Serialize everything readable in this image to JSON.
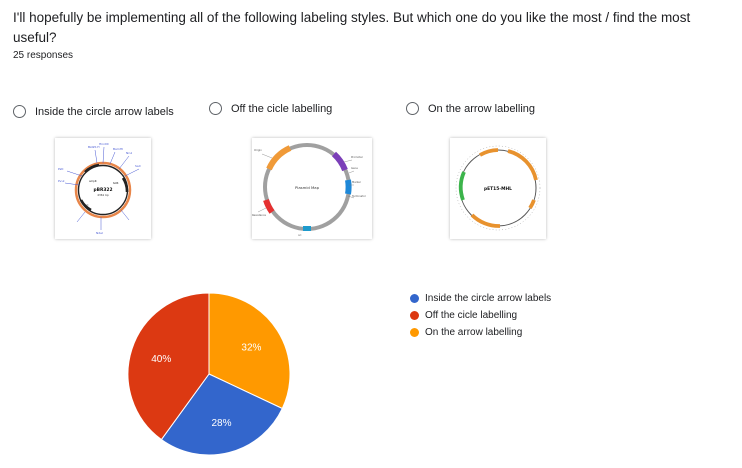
{
  "question": {
    "title": "I'll hopefully be implementing all of the following labeling styles. But which one do you like the most / find the most useful?",
    "responses": "25 responses"
  },
  "options": [
    {
      "label": "Inside the circle arrow labels",
      "icon": "radio-icon"
    },
    {
      "label": "Off the cicle labelling",
      "icon": "radio-icon"
    },
    {
      "label": "On the arrow labelling",
      "icon": "radio-icon"
    }
  ],
  "thumbnails": {
    "pbr322": {
      "name": "pBR322",
      "size": "4361 bp"
    },
    "plasmid": {
      "name": "Plasmid Map"
    },
    "pet15": {
      "name": "pET15-MHL"
    }
  },
  "chart_data": {
    "type": "pie",
    "series": [
      {
        "name": "Inside the circle arrow labels",
        "value": 28,
        "label": "28%",
        "color": "#3366cc"
      },
      {
        "name": "Off the cicle labelling",
        "value": 40,
        "label": "40%",
        "color": "#dc3912"
      },
      {
        "name": "On the arrow labelling",
        "value": 32,
        "label": "32%",
        "color": "#ff9900"
      }
    ],
    "legend_position": "right"
  }
}
